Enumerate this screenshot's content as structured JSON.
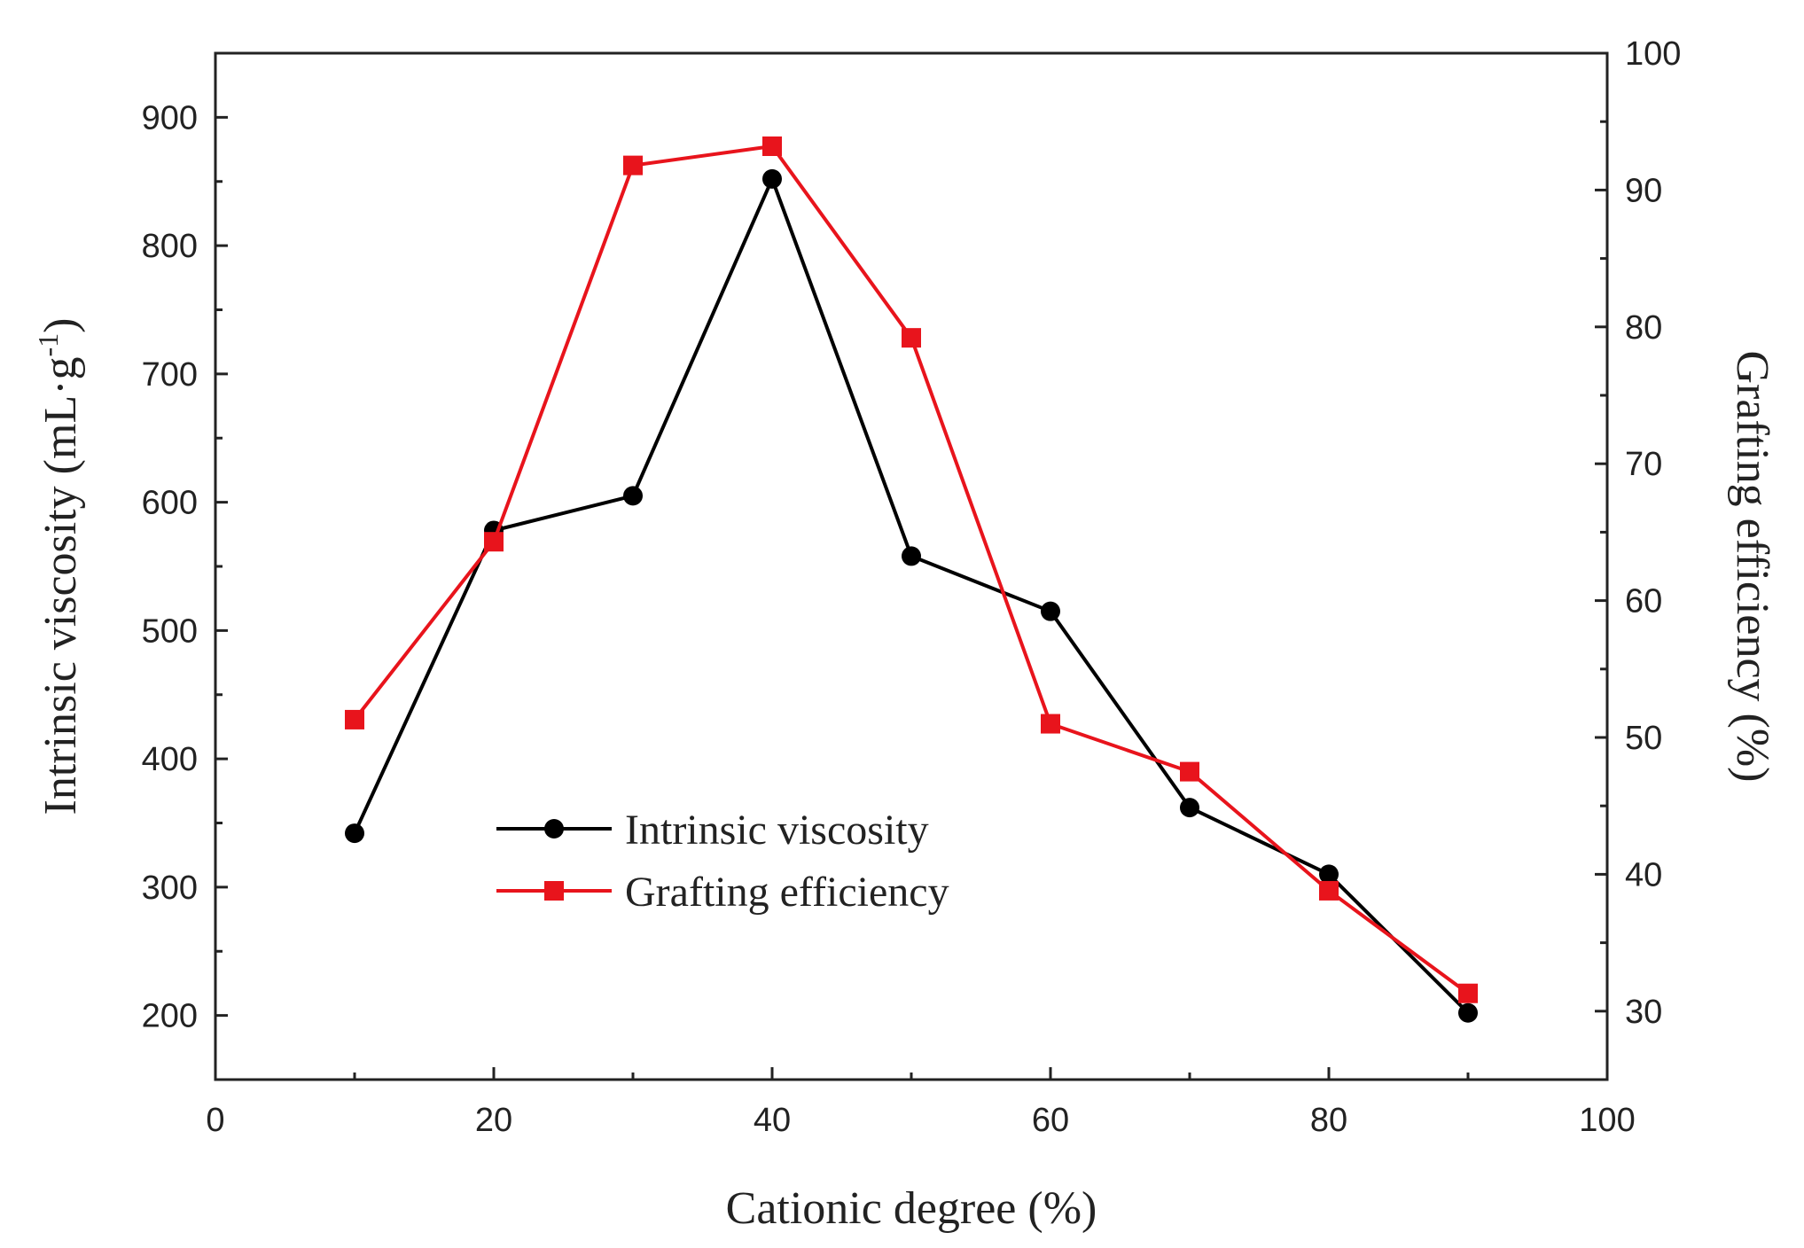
{
  "chart_data": {
    "type": "line",
    "xlabel": "Cationic degree (%)",
    "ylabel": {
      "prefix": "Intrinsic viscosity (mL·g",
      "sup": "-1",
      "suffix": ")"
    },
    "y2label": "Grafting efficiency (%)",
    "xlim": [
      0,
      100
    ],
    "ylim": [
      150,
      950
    ],
    "y2lim": [
      25,
      100
    ],
    "xticks": [
      "0",
      "20",
      "40",
      "60",
      "80",
      "100"
    ],
    "yticks": [
      "200",
      "300",
      "400",
      "500",
      "600",
      "700",
      "800",
      "900"
    ],
    "y2ticks": [
      "30",
      "40",
      "50",
      "60",
      "70",
      "80",
      "90",
      "100"
    ],
    "x": [
      10,
      20,
      30,
      40,
      50,
      60,
      70,
      80,
      90
    ],
    "series": [
      {
        "name": "Intrinsic viscosity",
        "axis": "left",
        "color": "#000000",
        "marker": "circle",
        "values": [
          342,
          578,
          605,
          852,
          558,
          515,
          362,
          310,
          202
        ]
      },
      {
        "name": "Grafting efficiency",
        "axis": "right",
        "color": "#e8141c",
        "marker": "square",
        "values": [
          51.3,
          64.3,
          91.8,
          93.2,
          79.2,
          51.0,
          47.5,
          38.8,
          31.3
        ]
      }
    ],
    "legend": "center-left",
    "grid": false
  }
}
